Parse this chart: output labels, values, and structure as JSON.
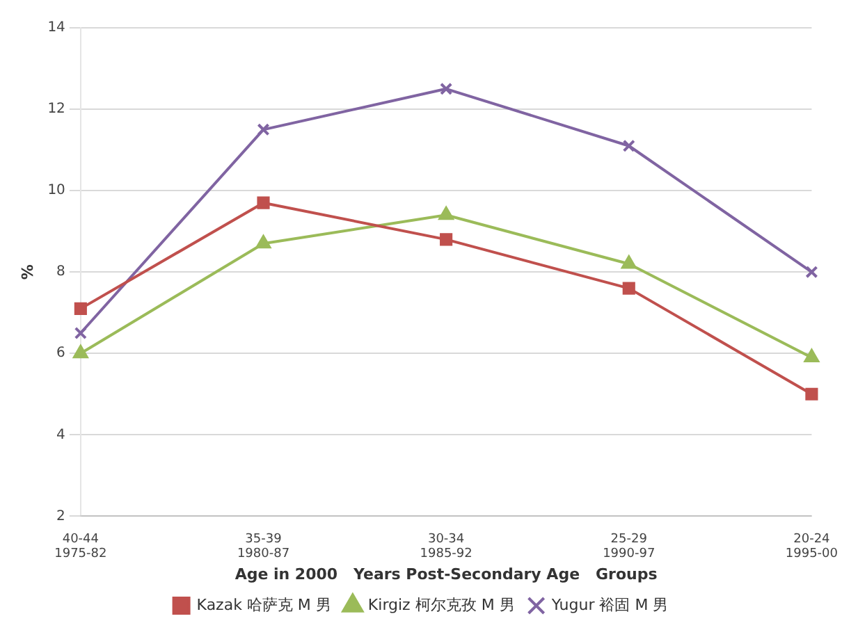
{
  "chart_data": {
    "type": "line",
    "xlabel": "Age in 2000   Years Post-Secondary Age   Groups",
    "ylabel": "%",
    "categories": [
      "40-44\n1975-82",
      "35-39\n1980-87",
      "30-34\n1985-92",
      "25-29\n1990-97",
      "20-24\n1995-00"
    ],
    "series": [
      {
        "name": "Kazak 哈萨克 M 男",
        "color": "#c0504d",
        "marker": "square",
        "values": [
          7.1,
          9.7,
          8.8,
          7.6,
          5.0
        ]
      },
      {
        "name": "Kirgiz 柯尔克孜 M 男",
        "color": "#9bbb59",
        "marker": "triangle",
        "values": [
          6.0,
          8.7,
          9.4,
          8.2,
          5.9
        ]
      },
      {
        "name": "Yugur 裕固 M 男",
        "color": "#8064a2",
        "marker": "cross",
        "values": [
          6.5,
          11.5,
          12.5,
          11.1,
          8.0
        ]
      }
    ],
    "ylim": [
      2,
      14
    ],
    "yticks": [
      2,
      4,
      6,
      8,
      10,
      12,
      14
    ],
    "grid": "y",
    "legend": "bottom"
  }
}
